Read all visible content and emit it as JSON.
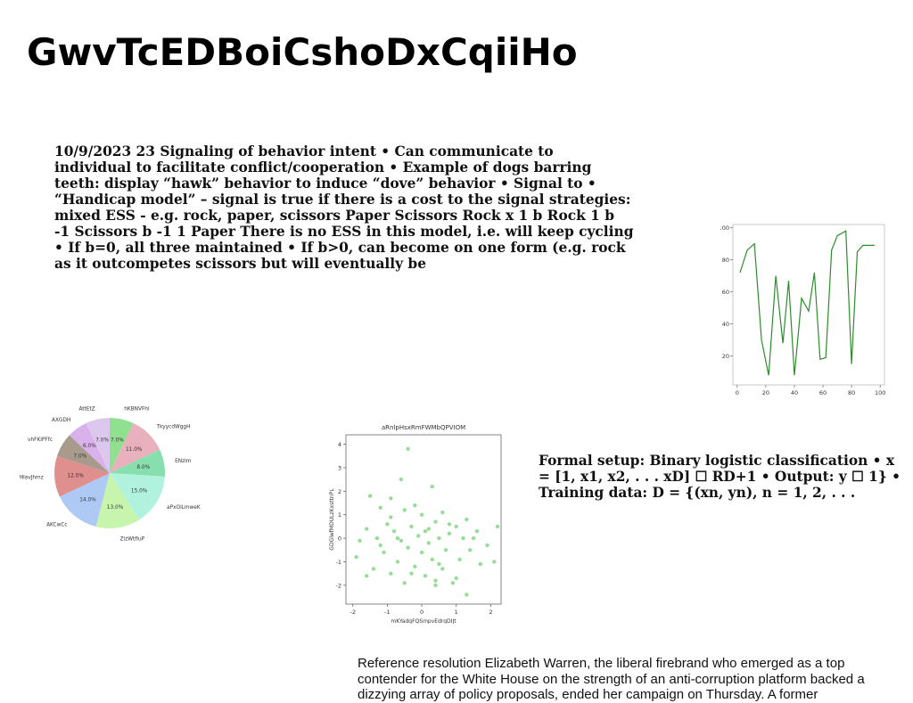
{
  "title": "GwvTcEDBoiCshoDxCqiiHo",
  "para1": "10/9/2023 23 Signaling of behavior intent • Can communicate to individual to facilitate conflict/cooperation • Example of dogs barring teeth: display “hawk” behavior to induce “dove” behavior • Signal to • “Handicap model” – signal is true if there is a cost to the signal strategies: mixed ESS - e.g. rock, paper, scissors Paper Scissors Rock x 1 b Rock 1 b -1 Scissors b -1 1 Paper There is no ESS in this model, i.e. will keep cycling • If b=0, all three maintained • If b>0, can become on one form (e.g. rock as it outcompetes scissors but will eventually be",
  "para2": "Formal setup: Binary logistic classification • x = [1, x1, x2, . . . xD] ☐ RD+1 • Output: y ☐ 1} • Training data: D = {(xn, yn), n = 1, 2, . . .",
  "para3": "Reference resolution Elizabeth Warren, the liberal firebrand who emerged as a top contender for the White House on the strength of an anti-corruption platform backed a dizzying array of policy proposals, ended her campaign on Thursday. A former",
  "chart_data": [
    {
      "type": "line",
      "title": "",
      "xlabel": "",
      "ylabel": "",
      "xlim": [
        -3,
        103
      ],
      "ylim": [
        2,
        102
      ],
      "xticks": [
        0,
        20,
        40,
        60,
        80,
        100
      ],
      "yticks": [
        20,
        40,
        60,
        80,
        100
      ],
      "color": "#2e8b2e",
      "grid": false,
      "x": [
        2,
        7,
        12,
        17,
        22,
        27,
        32,
        36,
        40,
        45,
        50,
        54,
        58,
        62,
        66,
        70,
        76,
        80,
        84,
        88,
        92,
        96
      ],
      "y": [
        72,
        86,
        90,
        30,
        8,
        70,
        28,
        67,
        8,
        56,
        48,
        72,
        18,
        19,
        86,
        95,
        98,
        15,
        85,
        89,
        89,
        89
      ]
    },
    {
      "type": "pie",
      "labels": [
        "hKBNVFhl",
        "TkyycdWggH",
        "ENzlm",
        "aPxOiLmweK",
        "ZizWtfIuP",
        "AKCwCc",
        "GMlavJhmz",
        "vhFKiPFfc",
        "AXGDH",
        "AttEtZ"
      ],
      "values": [
        7.0,
        11.0,
        8.0,
        15.0,
        13.0,
        14.0,
        12.0,
        7.0,
        6.0,
        7.0
      ],
      "value_labels": [
        "7.0%",
        "11.0%",
        "8.0%",
        "15.0%",
        "13.0%",
        "14.0%",
        "12.0%",
        "7.0%",
        "6.0%",
        "7.0%"
      ],
      "colors": [
        "#8fe08f",
        "#e8b1bd",
        "#88dfae",
        "#b0f2de",
        "#c7f5ad",
        "#afc9f5",
        "#e08f8f",
        "#a89a8d",
        "#d9b2eb",
        "#dcc8ef"
      ]
    },
    {
      "type": "scatter",
      "title": "aRnlpHsxRmFWMbQPVIOM",
      "xlabel": "mKYadgFQSmpvEdrgDIJt",
      "ylabel": "GDGlwfMDULzKxsttnPL",
      "xlim": [
        -2.2,
        2.3
      ],
      "ylim": [
        -2.8,
        4.4
      ],
      "xticks": [
        -2,
        -1,
        0,
        1,
        2
      ],
      "yticks": [
        -2,
        -1,
        0,
        1,
        2,
        3,
        4
      ],
      "color": "#74d174",
      "points": [
        [
          -0.4,
          3.8
        ],
        [
          -0.6,
          2.5
        ],
        [
          0.3,
          2.2
        ],
        [
          -1.5,
          1.8
        ],
        [
          -0.9,
          1.7
        ],
        [
          -0.2,
          1.4
        ],
        [
          -1.2,
          1.3
        ],
        [
          0.6,
          1.1
        ],
        [
          -0.5,
          1.2
        ],
        [
          0.0,
          1.0
        ],
        [
          1.3,
          0.8
        ],
        [
          -1.0,
          0.6
        ],
        [
          0.4,
          0.7
        ],
        [
          1.0,
          0.5
        ],
        [
          -1.6,
          0.4
        ],
        [
          -0.3,
          0.5
        ],
        [
          2.2,
          0.5
        ],
        [
          0.1,
          0.3
        ],
        [
          -0.8,
          0.3
        ],
        [
          0.8,
          0.2
        ],
        [
          1.6,
          0.3
        ],
        [
          -1.3,
          0.0
        ],
        [
          -0.1,
          0.1
        ],
        [
          0.5,
          0.0
        ],
        [
          1.2,
          0.0
        ],
        [
          -0.6,
          -0.1
        ],
        [
          0.2,
          -0.2
        ],
        [
          -1.8,
          -0.1
        ],
        [
          1.9,
          -0.3
        ],
        [
          -0.4,
          -0.4
        ],
        [
          0.7,
          -0.5
        ],
        [
          1.4,
          -0.5
        ],
        [
          -1.1,
          -0.6
        ],
        [
          0.0,
          -0.6
        ],
        [
          -1.9,
          -0.8
        ],
        [
          0.3,
          -0.9
        ],
        [
          1.1,
          -0.9
        ],
        [
          -0.7,
          -1.0
        ],
        [
          2.1,
          -1.0
        ],
        [
          -0.2,
          -1.2
        ],
        [
          1.7,
          -1.1
        ],
        [
          -1.4,
          -1.3
        ],
        [
          0.6,
          -1.3
        ],
        [
          -0.9,
          -1.5
        ],
        [
          0.1,
          -1.6
        ],
        [
          1.0,
          -1.7
        ],
        [
          -1.6,
          -1.6
        ],
        [
          0.4,
          -1.8
        ],
        [
          -0.5,
          -1.9
        ],
        [
          0.9,
          -1.9
        ],
        [
          1.3,
          -2.4
        ],
        [
          0.4,
          -2.0
        ],
        [
          -0.3,
          -1.5
        ],
        [
          0.8,
          0.6
        ],
        [
          -0.7,
          0.0
        ],
        [
          1.5,
          0.0
        ],
        [
          -1.2,
          -0.3
        ],
        [
          0.2,
          0.4
        ],
        [
          -0.9,
          0.9
        ],
        [
          0.5,
          -1.1
        ]
      ]
    }
  ]
}
